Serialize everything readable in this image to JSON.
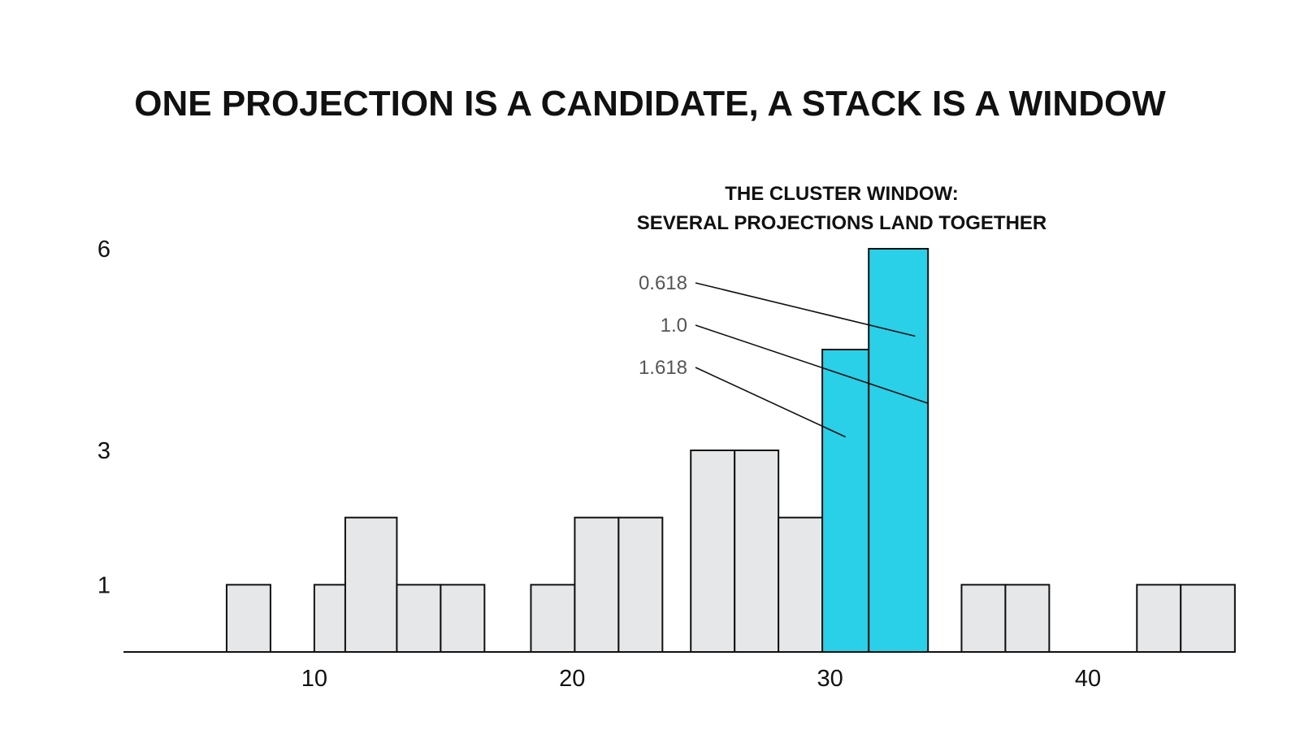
{
  "title": "ONE PROJECTION IS A CANDIDATE, A STACK IS A WINDOW",
  "annotation": {
    "line1": "THE CLUSTER WINDOW:",
    "line2": "SEVERAL PROJECTIONS LAND TOGETHER"
  },
  "colors": {
    "bar_fill": "#e6e7e9",
    "highlight_fill": "#29d0e8",
    "stroke": "#111111",
    "callout_text": "#555555"
  },
  "chart_data": {
    "type": "bar",
    "title": "ONE PROJECTION IS A CANDIDATE, A STACK IS A WINDOW",
    "xlabel": "",
    "ylabel": "",
    "xlim": [
      2.6,
      45.2
    ],
    "ylim": [
      0,
      6
    ],
    "x_ticks": [
      10,
      20,
      30,
      40
    ],
    "y_ticks": [
      1,
      3,
      6
    ],
    "grid": false,
    "bars": [
      {
        "x0": 6.6,
        "x1": 8.3,
        "value": 1,
        "highlight": false
      },
      {
        "x0": 10.0,
        "x1": 11.2,
        "value": 1,
        "highlight": false
      },
      {
        "x0": 11.2,
        "x1": 13.2,
        "value": 2,
        "highlight": false
      },
      {
        "x0": 13.2,
        "x1": 14.9,
        "value": 1,
        "highlight": false
      },
      {
        "x0": 14.9,
        "x1": 16.6,
        "value": 1,
        "highlight": false
      },
      {
        "x0": 18.4,
        "x1": 20.1,
        "value": 1,
        "highlight": false
      },
      {
        "x0": 20.1,
        "x1": 21.8,
        "value": 2,
        "highlight": false
      },
      {
        "x0": 21.8,
        "x1": 23.5,
        "value": 2,
        "highlight": false
      },
      {
        "x0": 24.6,
        "x1": 26.3,
        "value": 3,
        "highlight": false
      },
      {
        "x0": 26.3,
        "x1": 28.0,
        "value": 3,
        "highlight": false
      },
      {
        "x0": 28.0,
        "x1": 29.7,
        "value": 2,
        "highlight": false
      },
      {
        "x0": 29.7,
        "x1": 31.5,
        "value": 4.5,
        "highlight": true
      },
      {
        "x0": 31.5,
        "x1": 33.8,
        "value": 6,
        "highlight": true
      },
      {
        "x0": 35.1,
        "x1": 36.8,
        "value": 1,
        "highlight": false
      },
      {
        "x0": 36.8,
        "x1": 38.5,
        "value": 1,
        "highlight": false
      },
      {
        "x0": 41.9,
        "x1": 43.6,
        "value": 1,
        "highlight": false
      },
      {
        "x0": 43.6,
        "x1": 45.7,
        "value": 1,
        "highlight": false
      }
    ],
    "callouts": [
      {
        "label": "0.618",
        "x": 33.3,
        "y": 4.7
      },
      {
        "label": "1.0",
        "x": 33.8,
        "y": 3.7
      },
      {
        "label": "1.618",
        "x": 30.6,
        "y": 3.2
      }
    ]
  }
}
